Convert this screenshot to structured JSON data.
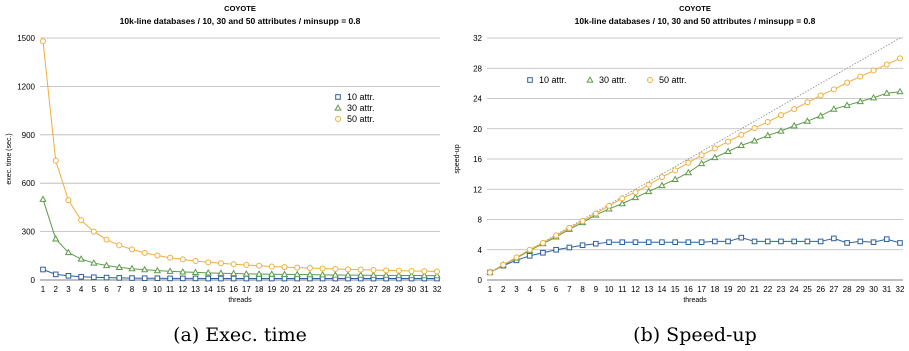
{
  "chart_data": [
    {
      "type": "line",
      "title": "COYOTE",
      "subtitle": "10k-line databases / 10, 30 and 50 attributes / minsupp = 0.8",
      "xlabel": "threads",
      "ylabel": "exec. time (sec.)",
      "caption": "(a) Exec. time",
      "x": [
        1,
        2,
        3,
        4,
        5,
        6,
        7,
        8,
        9,
        10,
        11,
        12,
        13,
        14,
        15,
        16,
        17,
        18,
        19,
        20,
        21,
        22,
        23,
        24,
        25,
        26,
        27,
        28,
        29,
        30,
        31,
        32
      ],
      "ylim": [
        0,
        1500
      ],
      "yticks": [
        0,
        300,
        600,
        900,
        1200,
        1500
      ],
      "grid": true,
      "legend_position": "right",
      "series": [
        {
          "name": "10 attr.",
          "color": "#2e5f9e",
          "marker": "square",
          "values": [
            65,
            35,
            26,
            20,
            17,
            15,
            13,
            12,
            11,
            11,
            10,
            10,
            10,
            9,
            9,
            9,
            9,
            9,
            9,
            9,
            9,
            9,
            9,
            9,
            9,
            9,
            9,
            9,
            9,
            9,
            9,
            9
          ]
        },
        {
          "name": "30 attr.",
          "color": "#5e9a4a",
          "marker": "triangle",
          "values": [
            500,
            255,
            170,
            130,
            105,
            90,
            78,
            70,
            64,
            58,
            54,
            50,
            47,
            44,
            42,
            40,
            38,
            37,
            36,
            35,
            34,
            33,
            32,
            31,
            30,
            30,
            29,
            29,
            28,
            28,
            27,
            27
          ]
        },
        {
          "name": "50 attr.",
          "color": "#f0ad3c",
          "marker": "circle",
          "values": [
            1480,
            740,
            495,
            370,
            300,
            250,
            215,
            190,
            168,
            152,
            138,
            128,
            118,
            110,
            104,
            98,
            93,
            88,
            84,
            80,
            77,
            74,
            71,
            68,
            66,
            64,
            62,
            60,
            58,
            56,
            55,
            53
          ]
        }
      ]
    },
    {
      "type": "line",
      "title": "COYOTE",
      "subtitle": "10k-line databases / 10, 30 and 50 attributes / minsupp = 0.8",
      "xlabel": "threads",
      "ylabel": "speed-up",
      "caption": "(b) Speed-up",
      "x": [
        1,
        2,
        3,
        4,
        5,
        6,
        7,
        8,
        9,
        10,
        11,
        12,
        13,
        14,
        15,
        16,
        17,
        18,
        19,
        20,
        21,
        22,
        23,
        24,
        25,
        26,
        27,
        28,
        29,
        30,
        31,
        32
      ],
      "ylim": [
        0,
        32
      ],
      "yticks": [
        0,
        4,
        8,
        12,
        16,
        20,
        24,
        28,
        32
      ],
      "grid": true,
      "legend_position": "top-left",
      "reference_line": "ideal speed-up (dotted diagonal)",
      "series": [
        {
          "name": "10 attr.",
          "color": "#2e5f9e",
          "marker": "square",
          "values": [
            1,
            1.9,
            2.6,
            3.2,
            3.6,
            4.0,
            4.3,
            4.6,
            4.8,
            5.0,
            5.0,
            5.0,
            5.0,
            5.0,
            5.0,
            5.0,
            5.0,
            5.1,
            5.1,
            5.6,
            5.1,
            5.1,
            5.1,
            5.1,
            5.1,
            5.1,
            5.5,
            4.9,
            5.1,
            5.0,
            5.4,
            4.9
          ]
        },
        {
          "name": "30 attr.",
          "color": "#5e9a4a",
          "marker": "triangle",
          "values": [
            1,
            2.0,
            2.9,
            3.9,
            4.8,
            5.7,
            6.7,
            7.6,
            8.6,
            9.4,
            10.1,
            10.9,
            11.7,
            12.5,
            13.3,
            14.2,
            15.4,
            16.2,
            17.0,
            17.8,
            18.4,
            19.1,
            19.7,
            20.4,
            21.0,
            21.7,
            22.6,
            23.1,
            23.6,
            24.1,
            24.7,
            24.9
          ]
        },
        {
          "name": "50 attr.",
          "color": "#f0ad3c",
          "marker": "circle",
          "values": [
            1,
            2.0,
            3.0,
            4.0,
            4.9,
            5.9,
            6.9,
            7.8,
            8.8,
            9.8,
            10.8,
            11.6,
            12.6,
            13.6,
            14.5,
            15.5,
            16.5,
            17.4,
            18.3,
            19.2,
            20.1,
            20.9,
            21.8,
            22.6,
            23.5,
            24.4,
            25.2,
            26.1,
            26.9,
            27.7,
            28.5,
            29.3
          ]
        }
      ]
    }
  ]
}
